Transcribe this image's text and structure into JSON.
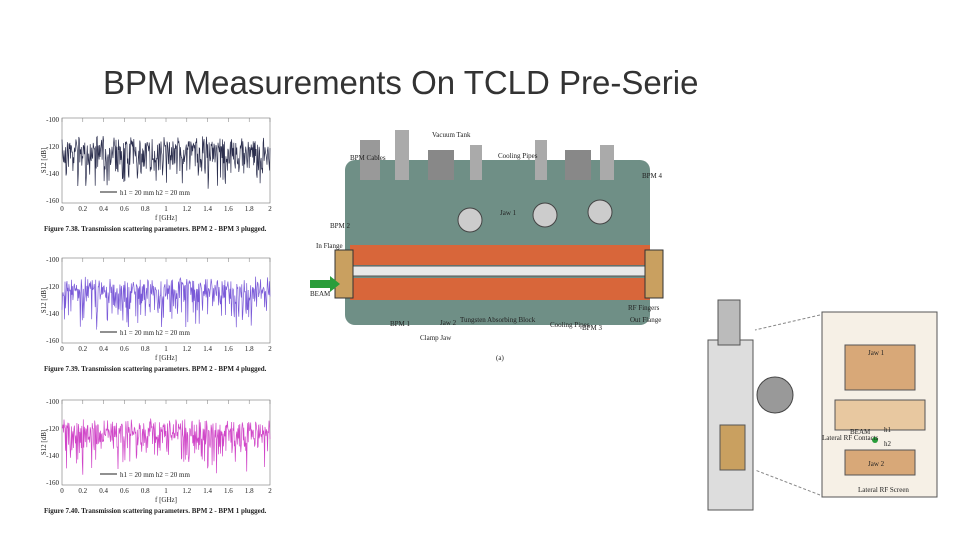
{
  "title": "BPM Measurements On TCLD Pre-Serie",
  "plots": [
    {
      "ylabel": "S12 [dB]",
      "xlabel": "f [GHz]",
      "legend": "h1 = 20 mm h2 = 20 mm",
      "caption": "Figure 7.38. Transmission scattering parameters. BPM 2 - BPM 3 plugged."
    },
    {
      "ylabel": "S12 [dB]",
      "xlabel": "f [GHz]",
      "legend": "h1 = 20 mm h2 = 20 mm",
      "caption": "Figure 7.39. Transmission scattering parameters. BPM 2 - BPM 4 plugged."
    },
    {
      "ylabel": "S12 [dB]",
      "xlabel": "f [GHz]",
      "legend": "h1 = 20 mm h2 = 20 mm",
      "caption": "Figure 7.40. Transmission scattering parameters. BPM 2 - BPM 1 plugged."
    }
  ],
  "plot_yticks": [
    "-100",
    "-120",
    "-140",
    "-160"
  ],
  "plot_xticks": [
    "0",
    "0.2",
    "0.4",
    "0.6",
    "0.8",
    "1",
    "1.2",
    "1.4",
    "1.6",
    "1.8",
    "2"
  ],
  "diagram": {
    "labels": [
      "Vacuum Tank",
      "BPM Cables",
      "Cooling Pipes",
      "BPM 4",
      "Jaw 1",
      "BPM 2",
      "In Flange",
      "BEAM",
      "Jaw 2",
      "Tungsten Absorbing Block",
      "Cooling Pipes",
      "RF Fingers",
      "Out Flange",
      "BPM 1",
      "Clamp Jaw",
      "BPM 3",
      "(a)"
    ]
  },
  "section": {
    "labels": [
      "Jaw 1",
      "BEAM",
      "h1",
      "h2",
      "Lateral RF Contacts",
      "Jaw 2",
      "Lateral RF Screen"
    ]
  }
}
